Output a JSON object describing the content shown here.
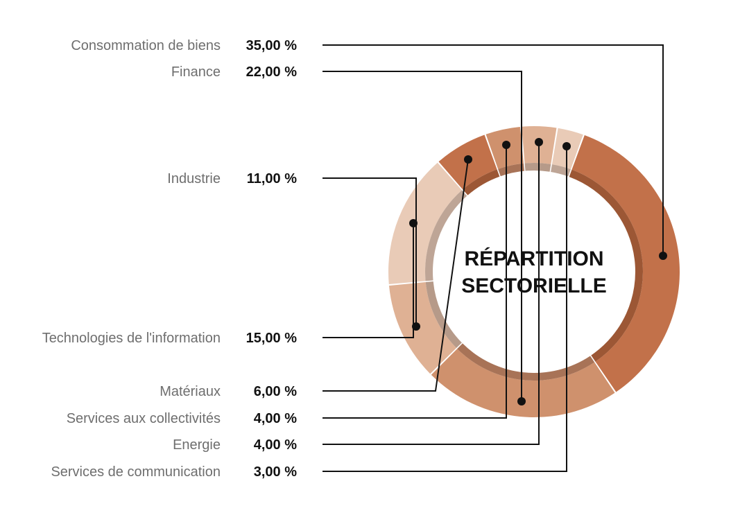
{
  "chart_data": {
    "type": "pie",
    "title_lines": [
      "RÉPARTITION",
      "SECTORIELLE"
    ],
    "slices": [
      {
        "label": "Consommation de biens",
        "value": 35.0,
        "display": "35,00 %",
        "color": "#c2714a",
        "inner": "#9c5735"
      },
      {
        "label": "Finance",
        "value": 22.0,
        "display": "22,00 %",
        "color": "#cf916d",
        "inner": "#a87357"
      },
      {
        "label": "Industrie",
        "value": 11.0,
        "display": "11,00 %",
        "color": "#dfb194",
        "inner": "#b69a89"
      },
      {
        "label": "Technologies de l'information",
        "value": 15.0,
        "display": "15,00 %",
        "color": "#e9cbb7",
        "inner": "#bea596"
      },
      {
        "label": "Matériaux",
        "value": 6.0,
        "display": "6,00 %",
        "color": "#c2714a",
        "inner": "#9c5735"
      },
      {
        "label": "Services aux collectivités",
        "value": 4.0,
        "display": "4,00 %",
        "color": "#cf916d",
        "inner": "#a87357"
      },
      {
        "label": "Energie",
        "value": 4.0,
        "display": "4,00 %",
        "color": "#dfb194",
        "inner": "#b69a89"
      },
      {
        "label": "Services de communication",
        "value": 3.0,
        "display": "3,00 %",
        "color": "#e9cbb7",
        "inner": "#bea596"
      }
    ]
  }
}
